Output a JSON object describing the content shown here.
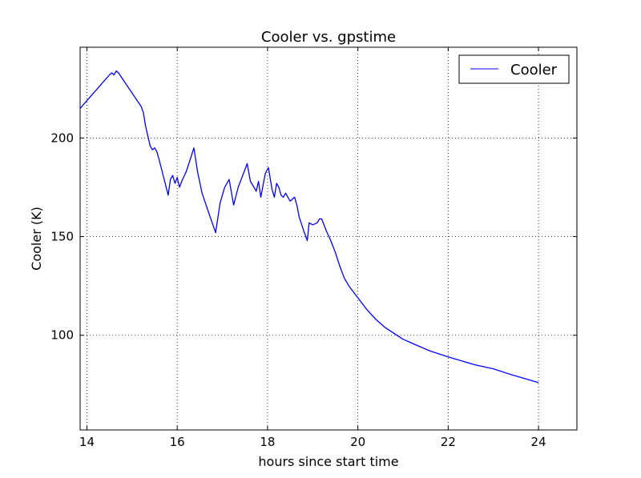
{
  "chart_data": {
    "type": "line",
    "title": "Cooler vs. gpstime",
    "xlabel": "hours since start time",
    "ylabel": "Cooler (K)",
    "xlim": [
      13.85,
      24.85
    ],
    "ylim": [
      52,
      246
    ],
    "xticks": [
      14,
      16,
      18,
      20,
      22,
      24
    ],
    "yticks": [
      100,
      150,
      200
    ],
    "grid": true,
    "legend_position": "top-right",
    "series": [
      {
        "name": "Cooler",
        "color": "#0000ff",
        "x": [
          13.85,
          14.5,
          14.55,
          14.6,
          14.65,
          14.7,
          15.2,
          15.25,
          15.3,
          15.4,
          15.45,
          15.5,
          15.55,
          15.6,
          15.7,
          15.8,
          15.85,
          15.9,
          15.95,
          16.0,
          16.05,
          16.1,
          16.2,
          16.3,
          16.37,
          16.45,
          16.55,
          16.7,
          16.85,
          16.95,
          17.05,
          17.15,
          17.25,
          17.35,
          17.45,
          17.55,
          17.62,
          17.7,
          17.75,
          17.8,
          17.85,
          17.95,
          18.02,
          18.1,
          18.15,
          18.2,
          18.25,
          18.3,
          18.35,
          18.4,
          18.5,
          18.6,
          18.65,
          18.7,
          18.8,
          18.88,
          18.92,
          19.0,
          19.1,
          19.15,
          19.2,
          19.3,
          19.4,
          19.5,
          19.6,
          19.7,
          19.8,
          19.9,
          20.0,
          20.2,
          20.4,
          20.6,
          20.8,
          21.0,
          21.3,
          21.6,
          22.0,
          22.3,
          22.6,
          23.0,
          23.4,
          23.7,
          24.0
        ],
        "y": [
          215,
          232,
          233,
          232,
          234,
          233,
          216,
          213,
          206,
          196,
          194,
          195,
          193,
          189,
          180,
          171,
          179,
          181,
          177,
          180,
          175,
          178,
          183,
          190,
          195,
          183,
          172,
          162,
          152,
          167,
          175,
          179,
          166,
          175,
          181,
          187,
          178,
          175,
          173,
          178,
          170,
          182,
          185,
          174,
          170,
          177,
          175,
          171,
          170,
          172,
          168,
          170,
          166,
          160,
          153,
          148,
          157,
          156,
          157,
          159,
          159,
          153,
          148,
          142,
          135,
          129,
          125,
          122,
          119,
          113,
          108,
          104,
          101,
          98,
          95,
          92,
          89,
          87,
          85,
          83,
          80,
          78,
          76
        ]
      }
    ]
  }
}
